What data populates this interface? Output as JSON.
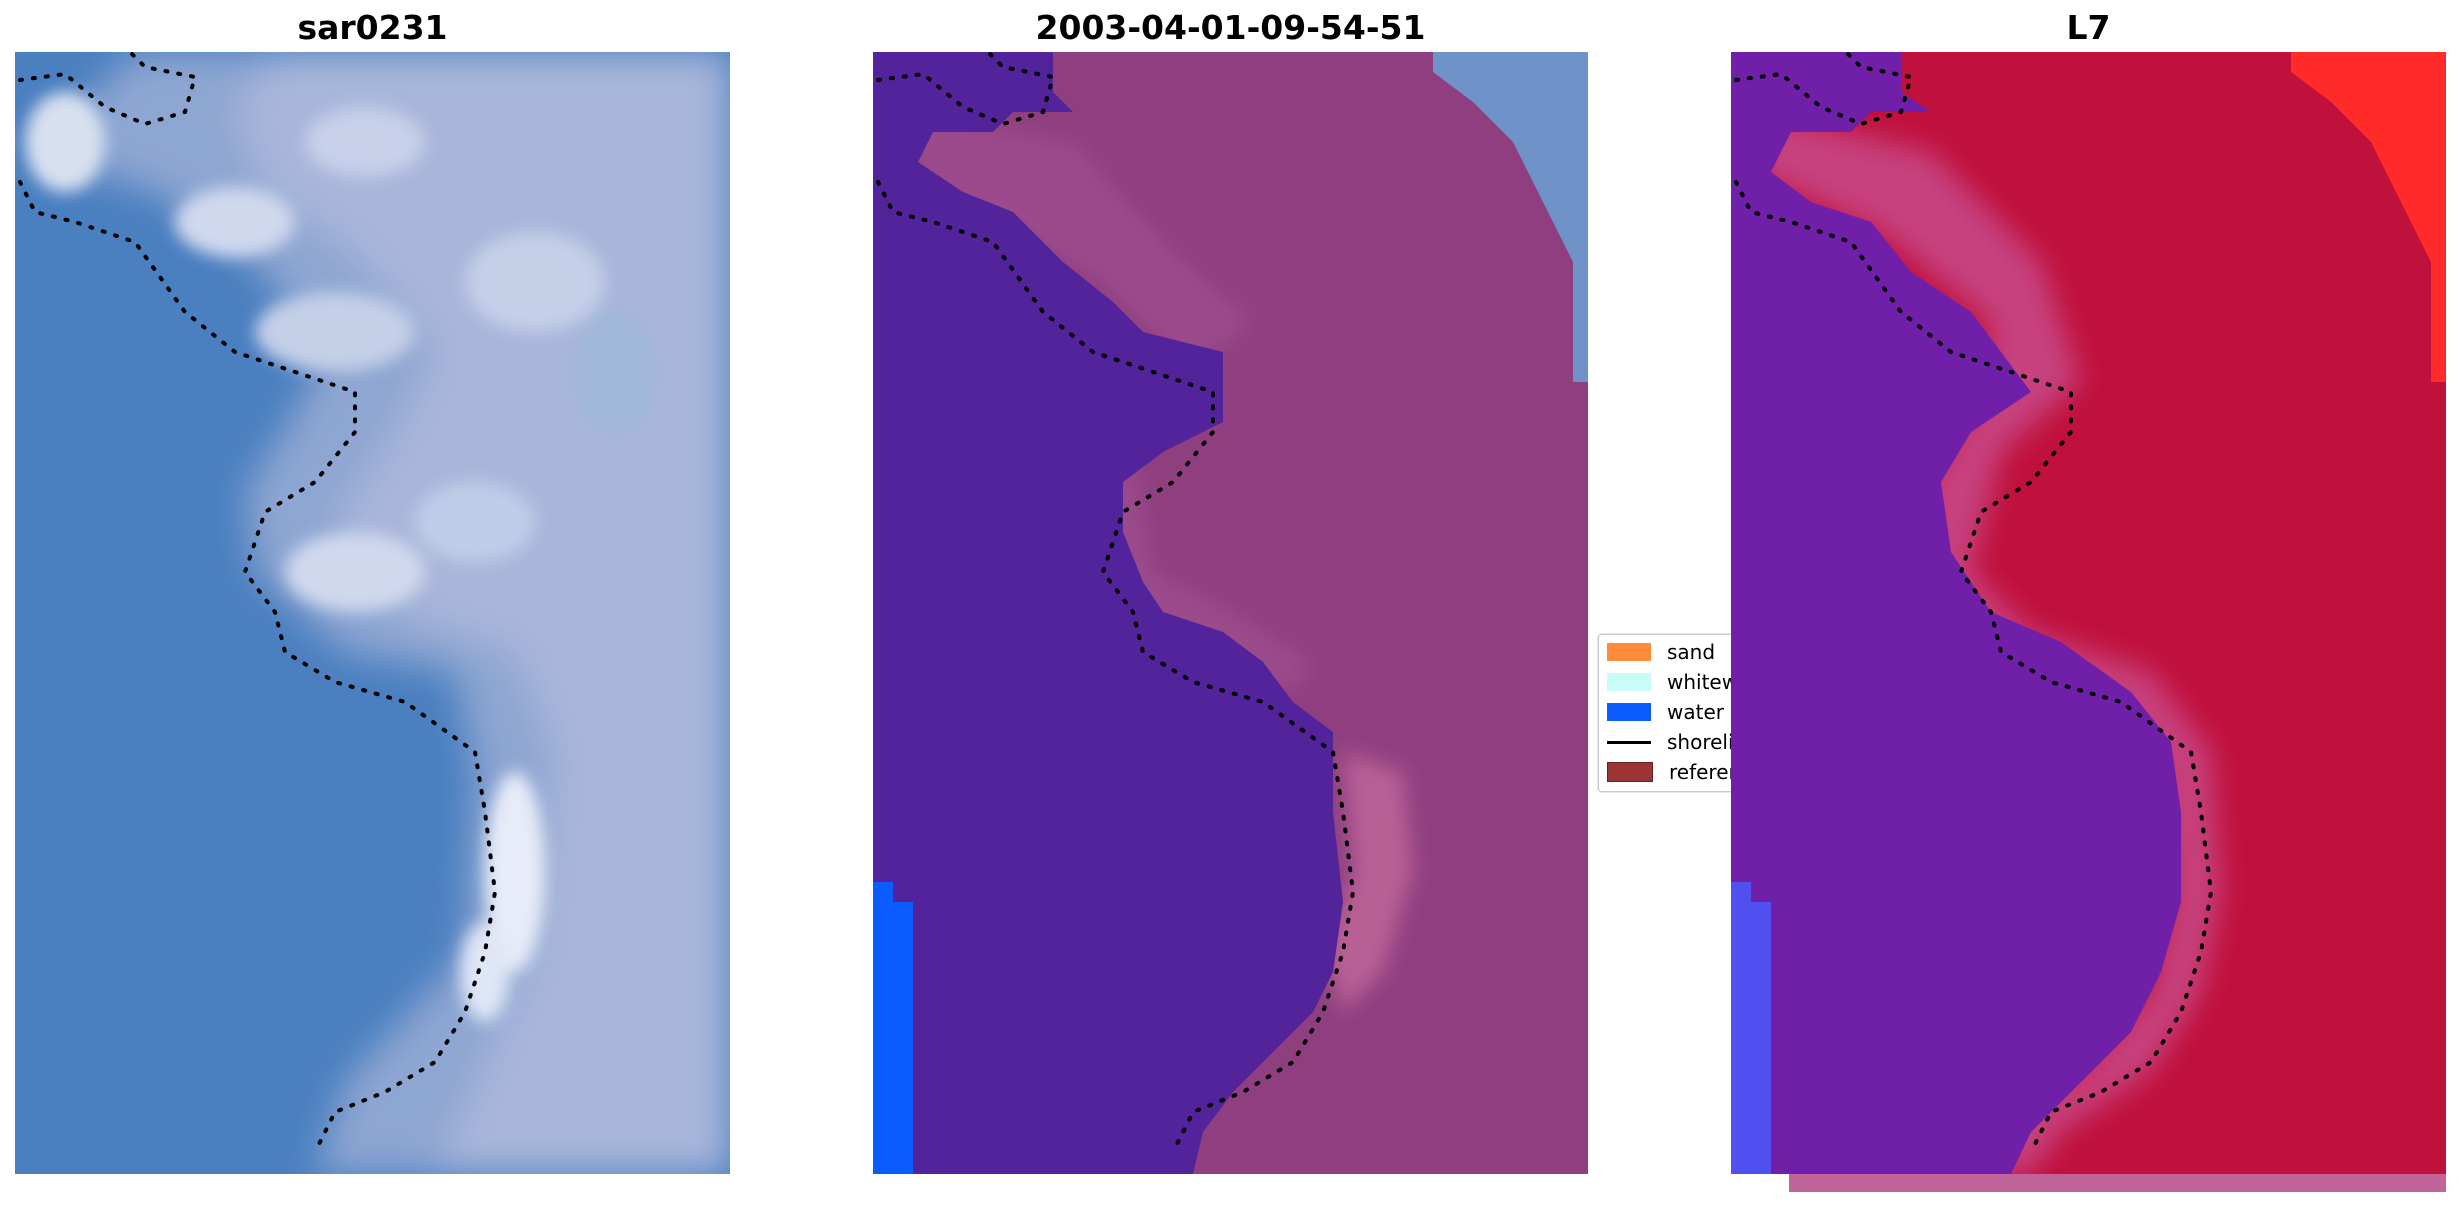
{
  "panels": [
    {
      "id": "sar",
      "title": "sar0231"
    },
    {
      "id": "class",
      "title": "2003-04-01-09-54-51"
    },
    {
      "id": "l7",
      "title": "L7"
    }
  ],
  "legend": {
    "items": [
      {
        "label": "sand",
        "color": "#ff8c3a",
        "kind": "patch"
      },
      {
        "label": "whitewater",
        "color": "#c8fcf8",
        "kind": "patch"
      },
      {
        "label": "water",
        "color": "#0a5cff",
        "kind": "patch"
      },
      {
        "label": "shoreline",
        "color": "#000000",
        "kind": "line"
      },
      {
        "label": "reference",
        "color": "#9b3535",
        "kind": "patch"
      }
    ]
  },
  "colors": {
    "sea_rgb": "#4a7fc0",
    "foam_rgb": "#c8d0e8",
    "class_water_overlay": "#52239a",
    "class_land_overlay": "#8f3f80",
    "class_surf_overlay": "#c0649a",
    "l7_water": "#7020a8",
    "l7_land": "#c0103c",
    "l7_bright_corner": "#ff2a2a"
  }
}
